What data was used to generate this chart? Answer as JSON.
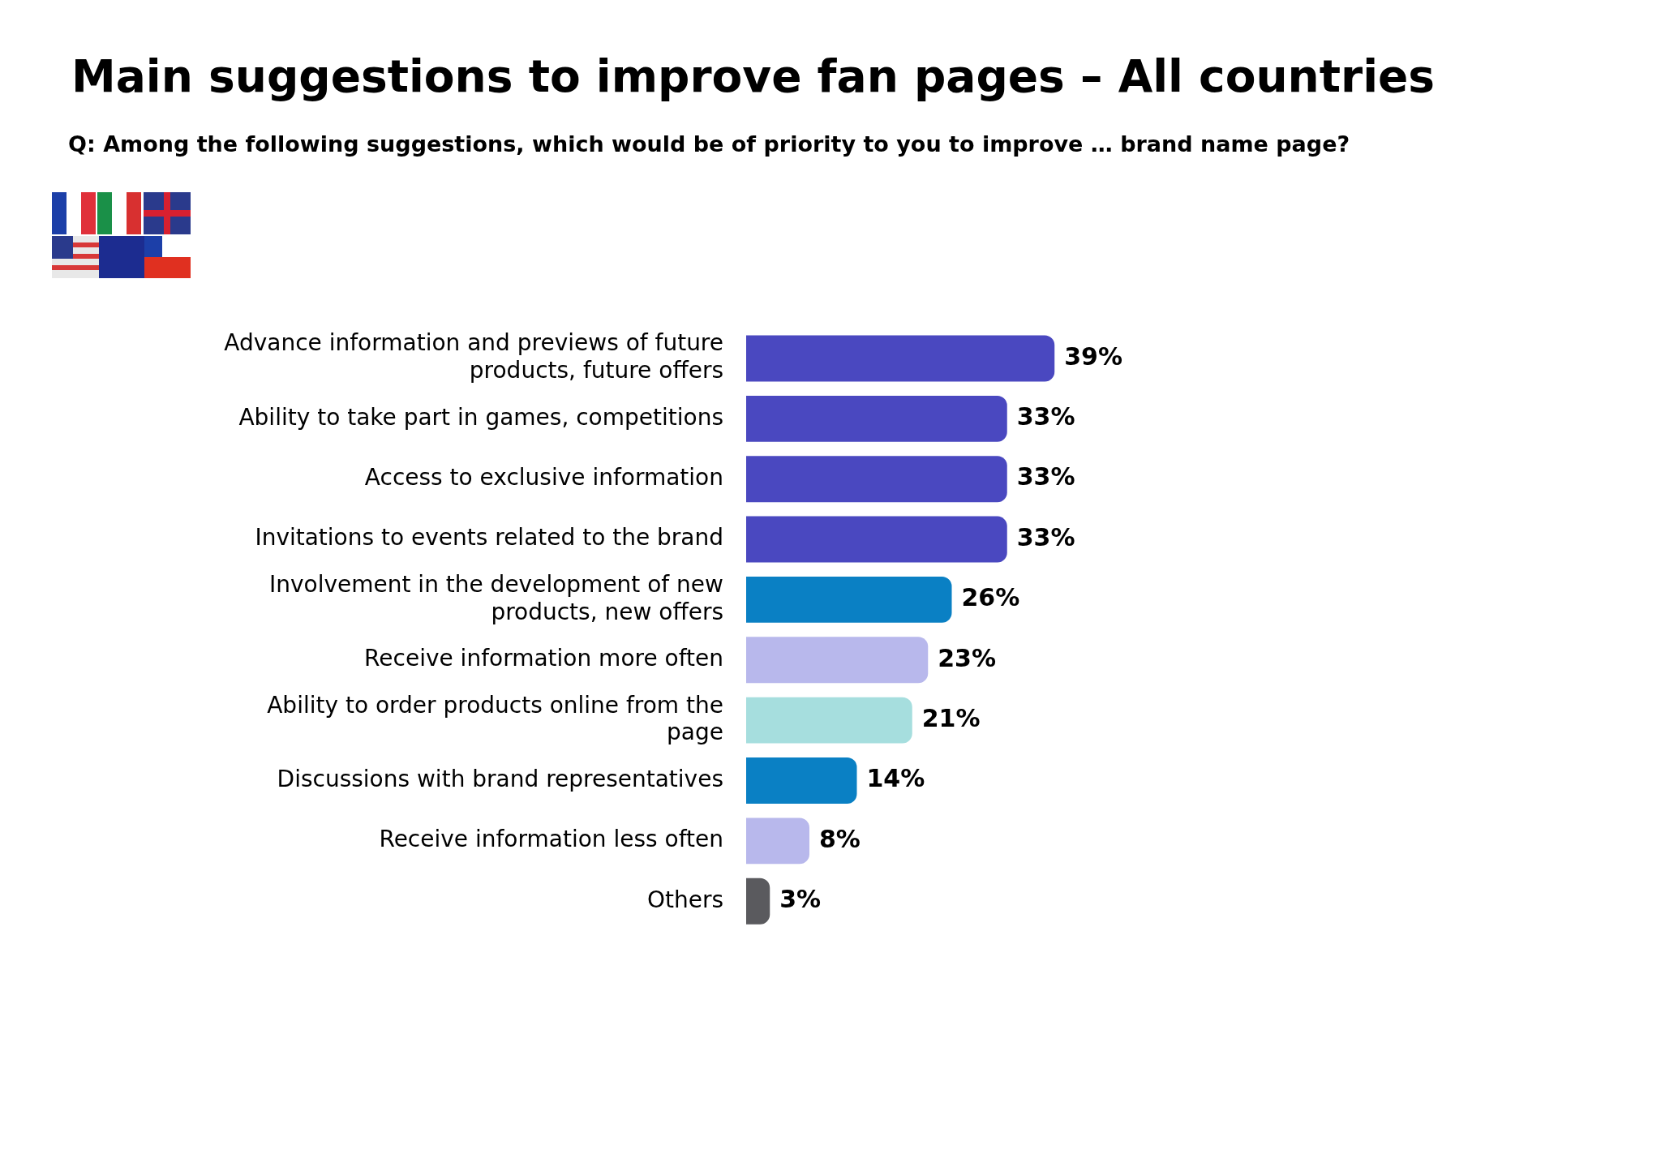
{
  "chart_data": {
    "type": "bar",
    "orientation": "horizontal",
    "title": "Main suggestions to improve fan pages – All countries",
    "subtitle": "Q: Among the following suggestions, which would be of priority to you to improve … brand name page?",
    "categories": [
      "Advance information and previews of future products, future offers",
      "Ability to take part in games, competitions",
      "Access to exclusive information",
      "Invitations to events related to the brand",
      "Involvement in the development of new products, new offers",
      "Receive information more often",
      "Ability to order products online from the page",
      "Discussions with brand representatives",
      "Receive information less often",
      "Others"
    ],
    "values": [
      39,
      33,
      33,
      33,
      26,
      23,
      21,
      14,
      8,
      3
    ],
    "colors": [
      "#4a48c0",
      "#4a48c0",
      "#4a48c0",
      "#4a48c0",
      "#0a80c4",
      "#b8b8ec",
      "#a6dede",
      "#0a80c4",
      "#b8b8ec",
      "#5a5a5e"
    ],
    "value_labels": [
      "39%",
      "33%",
      "33%",
      "33%",
      "26%",
      "23%",
      "21%",
      "14%",
      "8%",
      "3%"
    ]
  }
}
